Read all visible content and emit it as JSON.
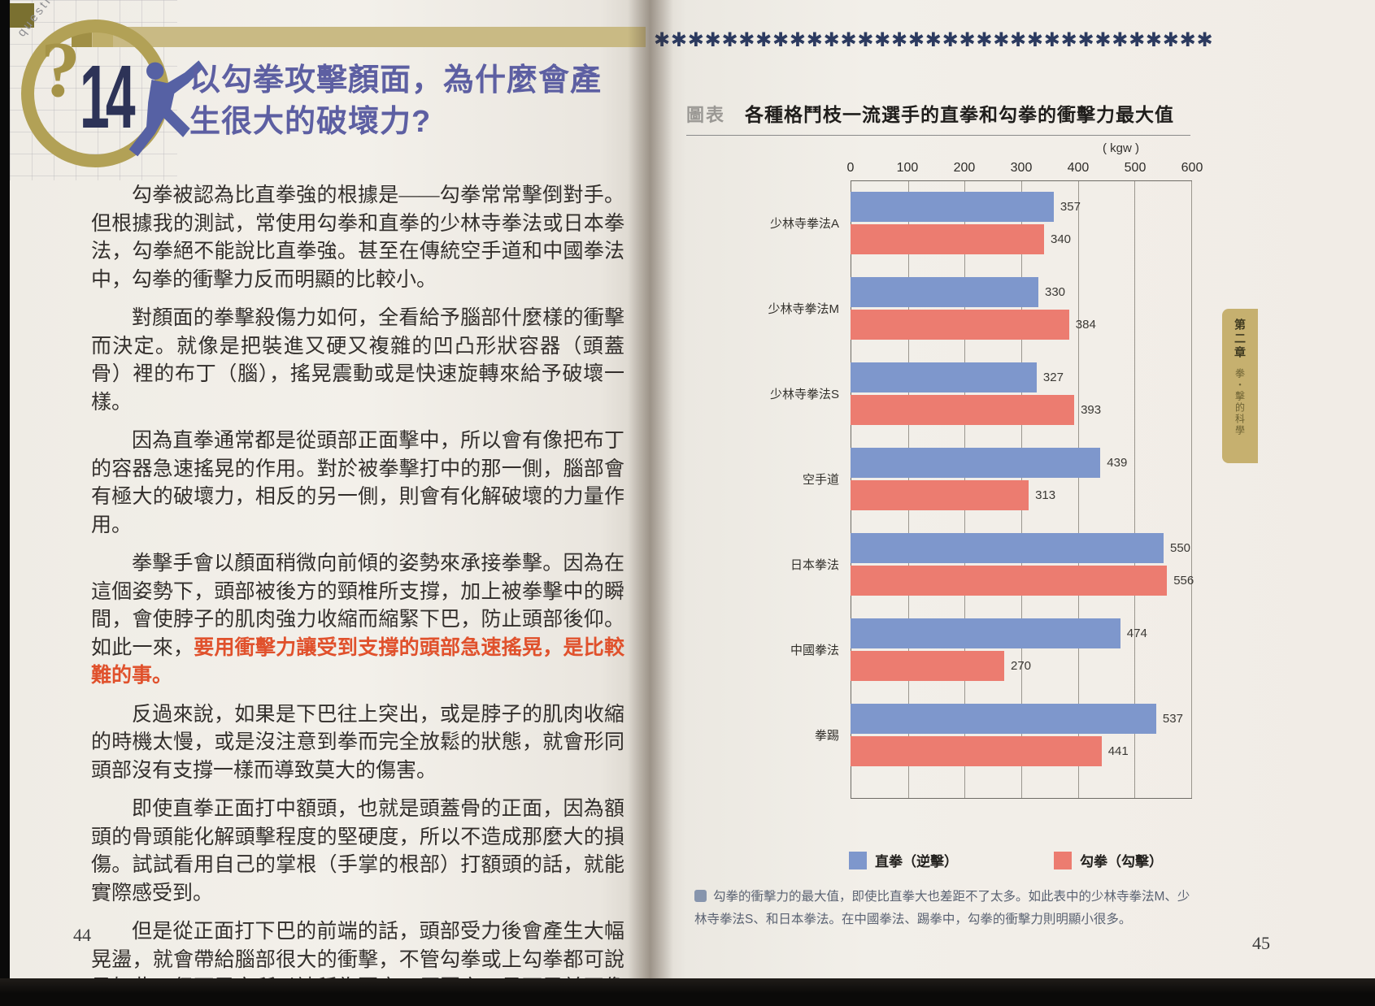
{
  "book": {
    "left_page": {
      "corner_label": "question",
      "question_number": "14",
      "question_mark": "?",
      "title_line1": "以勾拳攻擊顏面，為什麼會產",
      "title_line2": "生很大的破壞力?",
      "paragraphs": [
        {
          "segments": [
            {
              "style": "normal",
              "text": "勾拳被認為比直拳強的根據是——勾拳常常擊倒對手。但根據我的測試，常使用勾拳和直拳的少林寺拳法或日本拳法，勾拳絕不能說比直拳強。甚至在傳統空手道和中國拳法中，勾拳的衝擊力反而明顯的比較小。"
            }
          ]
        },
        {
          "segments": [
            {
              "style": "normal",
              "text": "對顏面的拳擊殺傷力如何，全看給予腦部什麼樣的衝擊而決定。就像是把裝進又硬又複雜的凹凸形狀容器（頭蓋骨）裡的布丁（腦），搖晃震動或是快速旋轉來給予破壞一樣。"
            }
          ]
        },
        {
          "segments": [
            {
              "style": "normal",
              "text": "因為直拳通常都是從頭部正面擊中，所以會有像把布丁的容器急速搖晃的作用。對於被拳擊打中的那一側，腦部會有極大的破壞力，相反的另一側，則會有化解破壞的力量作用。"
            }
          ]
        },
        {
          "segments": [
            {
              "style": "normal",
              "text": "拳擊手會以顏面稍微向前傾的姿勢來承接拳擊。因為在這個姿勢下，頭部被後方的頸椎所支撐，加上被拳擊中的瞬間，會使脖子的肌肉強力收縮而縮緊下巴，防止頭部後仰。如此一來，"
            },
            {
              "style": "highlight",
              "text": "要用衝擊力讓受到支撐的頭部急速搖晃，是比較難的事。"
            }
          ]
        },
        {
          "segments": [
            {
              "style": "normal",
              "text": "反過來說，如果是下巴往上突出，或是脖子的肌肉收縮的時機太慢，或是沒注意到拳而完全放鬆的狀態，就會形同頭部沒有支撐一樣而導致莫大的傷害。"
            }
          ]
        },
        {
          "segments": [
            {
              "style": "normal",
              "text": "即使直拳正面打中額頭，也就是頭蓋骨的正面，因為額頭的骨頭能化解頭擊程度的堅硬度，所以不造成那麼大的損傷。試試看用自己的掌根（手掌的根部）打額頭的話，就能實際感受到。"
            }
          ]
        },
        {
          "segments": [
            {
              "style": "normal",
              "text": "但是從正面打下巴的前端的話，頭部受力後會產生大幅晃盪，就會帶給腦部很大的衝擊，不管勾拳或上勾拳都可說是如此。但下巴之所以被稱為要害，原因之一是下巴並不像額頭那麼"
            }
          ]
        }
      ],
      "page_number": "44"
    },
    "right_page": {
      "star_char": "✱",
      "star_count": 33,
      "chart_label": "圖表",
      "chart_title": "各種格鬥枝一流選手的直拳和勾拳的衝擊力最大值",
      "unit_label": "( kgw )",
      "legend": [
        {
          "label": "直拳（逆擊）",
          "color": "#7e97cc"
        },
        {
          "label": "勾拳（勾擊）",
          "color": "#ec7c70"
        }
      ],
      "caption": "勾拳的衝擊力的最大值，即使比直拳大也差距不了太多。如此表中的少林寺拳法M、少林寺拳法S、和日本拳法。在中國拳法、踢拳中，勾拳的衝擊力則明顯小很多。",
      "side_tab": {
        "chapter": "第二章",
        "subtitle": "拳・擊的科學"
      },
      "page_number": "45"
    }
  },
  "chart_data": {
    "type": "bar",
    "orientation": "horizontal",
    "title": "各種格鬥枝一流選手的直拳和勾拳的衝擊力最大值",
    "unit": "kgw",
    "categories": [
      "少林寺拳法A",
      "少林寺拳法M",
      "少林寺拳法S",
      "空手道",
      "日本拳法",
      "中國拳法",
      "拳踢"
    ],
    "series": [
      {
        "name": "直拳（逆擊）",
        "color": "#7e97cc",
        "values": [
          357,
          330,
          327,
          439,
          550,
          474,
          537
        ]
      },
      {
        "name": "勾拳（勾擊）",
        "color": "#ec7c70",
        "values": [
          340,
          384,
          393,
          313,
          556,
          270,
          441
        ]
      }
    ],
    "xlim": [
      0,
      600
    ],
    "xticks": [
      0,
      100,
      200,
      300,
      400,
      500,
      600
    ],
    "grid": true,
    "legend_position": "bottom"
  }
}
